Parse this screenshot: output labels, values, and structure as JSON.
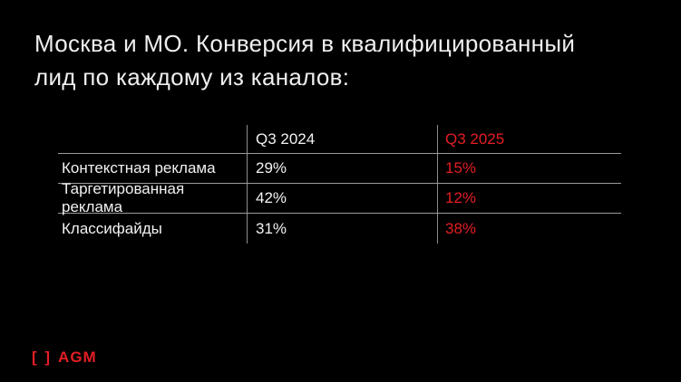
{
  "slide": {
    "title_lines": [
      "Москва и МО. Конверсия в квалифицированный",
      "лид по каждому из каналов:"
    ]
  },
  "table": {
    "header": {
      "channel": "",
      "col_2024": "Q3 2024",
      "col_2025": "Q3 2025"
    },
    "rows": [
      {
        "label": "Контекстная реклама",
        "q3_2024": "29%",
        "q3_2025": "15%"
      },
      {
        "label": "Таргетированная реклама",
        "q3_2024": "42%",
        "q3_2025": "12%"
      },
      {
        "label": "Классифайды",
        "q3_2024": "31%",
        "q3_2025": "38%"
      }
    ]
  },
  "footer": {
    "logo_brackets": "[ ]",
    "logo_name": "AGM"
  },
  "colors": {
    "background": "#000000",
    "text": "#f2f2f2",
    "accent_red": "#e31e24",
    "grid_line": "#9a9a9a"
  }
}
